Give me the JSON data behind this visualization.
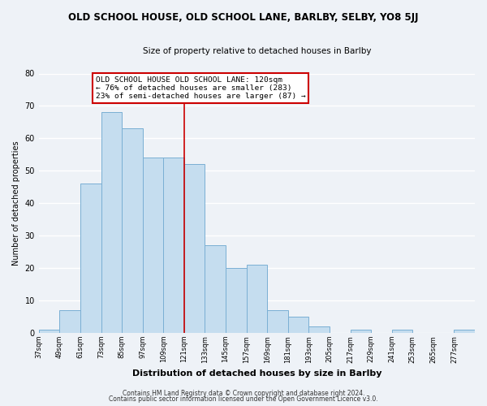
{
  "title": "OLD SCHOOL HOUSE, OLD SCHOOL LANE, BARLBY, SELBY, YO8 5JJ",
  "subtitle": "Size of property relative to detached houses in Barlby",
  "xlabel": "Distribution of detached houses by size in Barlby",
  "ylabel": "Number of detached properties",
  "bar_color": "#c5ddef",
  "bar_edge_color": "#7aafd4",
  "bin_edges": [
    37,
    49,
    61,
    73,
    85,
    97,
    109,
    121,
    133,
    145,
    157,
    169,
    181,
    193,
    205,
    217,
    229,
    241,
    253,
    265,
    277,
    289
  ],
  "bar_heights": [
    1,
    7,
    46,
    68,
    63,
    54,
    54,
    52,
    27,
    20,
    21,
    7,
    5,
    2,
    0,
    1,
    0,
    1,
    0,
    0,
    1
  ],
  "vline_x": 121,
  "vline_color": "#cc0000",
  "annotation_text": "OLD SCHOOL HOUSE OLD SCHOOL LANE: 120sqm\n← 76% of detached houses are smaller (283)\n23% of semi-detached houses are larger (87) →",
  "annotation_box_color": "#ffffff",
  "annotation_box_edge": "#cc0000",
  "ylim": [
    0,
    80
  ],
  "yticks": [
    0,
    10,
    20,
    30,
    40,
    50,
    60,
    70,
    80
  ],
  "xtick_labels": [
    "37sqm",
    "49sqm",
    "61sqm",
    "73sqm",
    "85sqm",
    "97sqm",
    "109sqm",
    "121sqm",
    "133sqm",
    "145sqm",
    "157sqm",
    "169sqm",
    "181sqm",
    "193sqm",
    "205sqm",
    "217sqm",
    "229sqm",
    "241sqm",
    "253sqm",
    "265sqm",
    "277sqm"
  ],
  "footer1": "Contains HM Land Registry data © Crown copyright and database right 2024.",
  "footer2": "Contains public sector information licensed under the Open Government Licence v3.0.",
  "background_color": "#eef2f7",
  "grid_color": "#ffffff",
  "title_fontsize": 8.5,
  "subtitle_fontsize": 7.5,
  "xlabel_fontsize": 8.0,
  "ylabel_fontsize": 7.0,
  "xtick_fontsize": 6.0,
  "ytick_fontsize": 7.0,
  "annotation_fontsize": 6.8,
  "footer_fontsize": 5.5
}
